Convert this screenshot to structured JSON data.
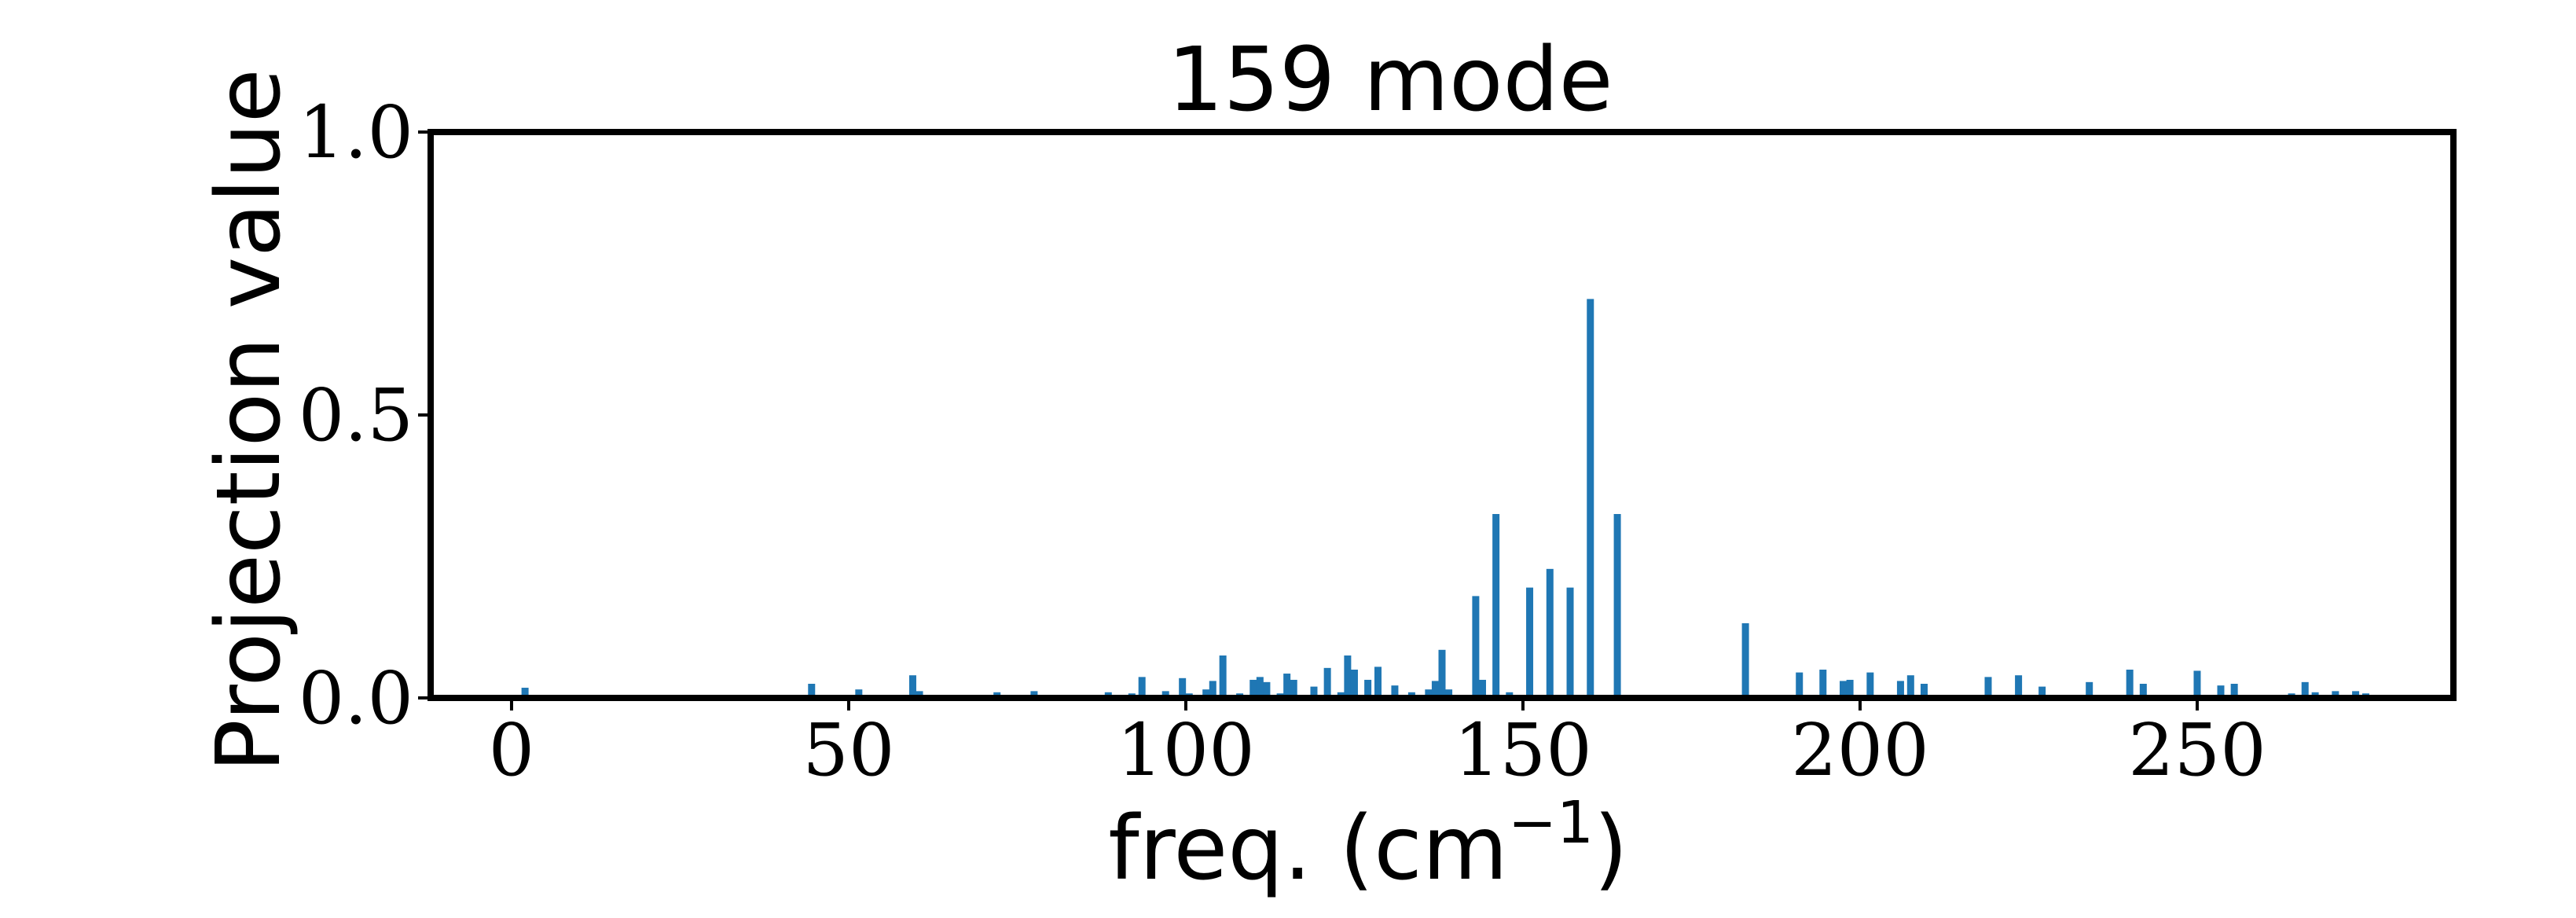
{
  "chart_data": {
    "type": "bar",
    "title": "159 mode",
    "xlabel": "freq. (cm",
    "xlabel_exponent": "−1",
    "xlabel_close": ")",
    "ylabel": "Projection value",
    "xlim": [
      -12,
      288
    ],
    "ylim": [
      0,
      1.0
    ],
    "xticks": [
      0,
      50,
      100,
      150,
      200,
      250
    ],
    "yticks": [
      0.0,
      0.5,
      1.0
    ],
    "ytick_labels": [
      "0.0",
      "0.5",
      "1.0"
    ],
    "bar_color": "#1f77b4",
    "grid": false,
    "series": [
      {
        "x": [
          2,
          44.5,
          51.5,
          59.5,
          60.5,
          72,
          77.5,
          88.5,
          92,
          93.5,
          97,
          99.5,
          100.5,
          103,
          104,
          105.5,
          108,
          110,
          111,
          112,
          114,
          115,
          116,
          119,
          121,
          123,
          124,
          125,
          127,
          128.5,
          131,
          133.5,
          136,
          137,
          138,
          139,
          143,
          144,
          146,
          148,
          151,
          154,
          157,
          160,
          164,
          183,
          191,
          194.5,
          197.5,
          198.5,
          201.5,
          206,
          207.5,
          209.5,
          219,
          223.5,
          227,
          234,
          240,
          242,
          250,
          253.5,
          255.5,
          264,
          266,
          267.5,
          270.5,
          273.5,
          275
        ],
        "values": [
          0.018,
          0.025,
          0.015,
          0.04,
          0.012,
          0.01,
          0.012,
          0.01,
          0.008,
          0.037,
          0.012,
          0.035,
          0.008,
          0.015,
          0.03,
          0.075,
          0.008,
          0.032,
          0.037,
          0.028,
          0.008,
          0.043,
          0.032,
          0.02,
          0.053,
          0.01,
          0.075,
          0.05,
          0.032,
          0.055,
          0.022,
          0.01,
          0.015,
          0.03,
          0.085,
          0.015,
          0.18,
          0.032,
          0.325,
          0.01,
          0.195,
          0.228,
          0.195,
          0.705,
          0.325,
          0.132,
          0.045,
          0.05,
          0.03,
          0.032,
          0.045,
          0.03,
          0.04,
          0.025,
          0.037,
          0.04,
          0.02,
          0.028,
          0.05,
          0.025,
          0.048,
          0.022,
          0.025,
          0.008,
          0.028,
          0.01,
          0.012,
          0.012,
          0.008
        ]
      }
    ]
  }
}
